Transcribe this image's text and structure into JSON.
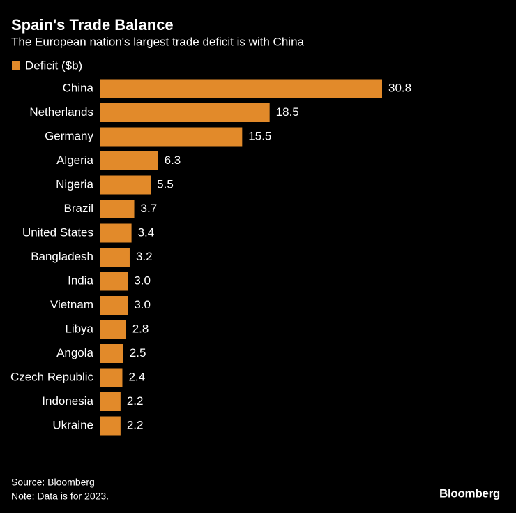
{
  "chart_data": {
    "type": "bar",
    "orientation": "horizontal",
    "title": "Spain's Trade Balance",
    "subtitle": "The European nation's largest trade deficit is with China",
    "categories": [
      "China",
      "Netherlands",
      "Germany",
      "Algeria",
      "Nigeria",
      "Brazil",
      "United States",
      "Bangladesh",
      "India",
      "Vietnam",
      "Libya",
      "Angola",
      "Czech Republic",
      "Indonesia",
      "Ukraine"
    ],
    "series": [
      {
        "name": "Deficit ($b)",
        "color": "#e28a2a",
        "values": [
          30.8,
          18.5,
          15.5,
          6.3,
          5.5,
          3.7,
          3.4,
          3.2,
          3,
          3,
          2.8,
          2.5,
          2.4,
          2.2,
          2.2
        ],
        "value_labels": [
          "30.8",
          "18.5",
          "15.5",
          "6.3",
          "5.5",
          "3.7",
          "3.4",
          "3.2",
          "3.0",
          "3.0",
          "2.8",
          "2.5",
          "2.4",
          "2.2",
          "2.2"
        ]
      }
    ],
    "source": "Source: Bloomberg",
    "note": "Note: Data is for 2023.",
    "brand": "Bloomberg"
  }
}
